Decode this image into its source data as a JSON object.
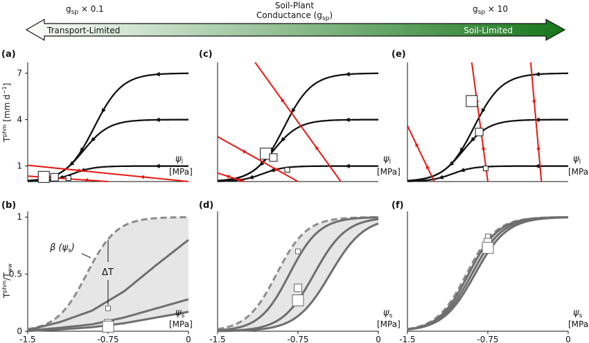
{
  "header": {
    "left_label": "g",
    "left_sub": "sp",
    "left_factor": " × 0.1",
    "center_line1": "Soil-Plant",
    "center_line2a": "Conductance (g",
    "center_line2b": "sp",
    "center_line2c": ")",
    "right_label": "g",
    "right_sub": "sp",
    "right_factor": " × 10",
    "arrow_left_text": "Transport-Limited",
    "arrow_right_text": "Soil-Limited",
    "colors": {
      "arrow_start": "#ffffff",
      "arrow_end": "#1a7a1a",
      "supply_line": "#e8170f",
      "demand_curve": "#111111",
      "response_curve": "#6e6e6e",
      "shading": "#e6e6e6"
    }
  },
  "axes_text": {
    "top_ylabel_main": "T",
    "top_ylabel_sup": "phm",
    "top_ylabel_units": "[mm d",
    "top_ylabel_units_sup": "−1",
    "top_ylabel_units_end": "]",
    "bottom_ylabel_main": "T",
    "bottom_ylabel_sup": "phm",
    "bottom_ylabel_div": "/T",
    "bottom_ylabel_sub": "ww",
    "psi_l_symbol": "ψ",
    "psi_l_sub": "l",
    "psi_s_symbol": "ψ",
    "psi_s_sub": "s",
    "unit": "[MPa]",
    "beta_label": "β (ψ",
    "beta_sub": "s",
    "beta_end": ")",
    "delta_label": "ΔT"
  },
  "chart_data": [
    {
      "panel": "(a)",
      "type": "line",
      "xlabel": "ψl [MPa]",
      "ylabel": "Tphm [mm d−1]",
      "yticks": [
        1,
        4,
        7
      ],
      "ylim": [
        0,
        7.7
      ],
      "xlim": [
        -1.5,
        0
      ],
      "demand_curves": [
        {
          "plateau": 7,
          "midpoint": -0.88,
          "width": 0.13
        },
        {
          "plateau": 4,
          "midpoint": -0.98,
          "width": 0.12
        },
        {
          "plateau": 1,
          "midpoint": -1.08,
          "width": 0.1
        }
      ],
      "supply_lines": [
        {
          "x_start": -1.5,
          "y_start": 1.05,
          "x_end": 0,
          "y_end": 0
        },
        {
          "x_start": -1.5,
          "y_start": 0.35,
          "x_end": -0.75,
          "y_end": 0
        }
      ],
      "operating_points": [
        {
          "x": -1.35,
          "y": 0.3,
          "size": "large"
        },
        {
          "x": -1.25,
          "y": 0.28,
          "size": "medium"
        },
        {
          "x": -1.12,
          "y": 0.22,
          "size": "small"
        }
      ]
    },
    {
      "panel": "(c)",
      "type": "line",
      "xlabel": "ψl [MPa]",
      "xlim": [
        -1.5,
        0
      ],
      "ylim": [
        0,
        7.7
      ],
      "supply_lines": [
        {
          "x_start": -1.5,
          "y_start": 2.9,
          "x_end": -0.75,
          "y_end": 0
        },
        {
          "x_start": -1.5,
          "y_start": 0.55,
          "x_end": -1.25,
          "y_end": 0
        },
        {
          "x_start": -1.15,
          "y_start": 7.7,
          "x_end": -0.35,
          "y_end": 0
        }
      ],
      "operating_points": [
        {
          "x": -1.05,
          "y": 1.8,
          "size": "large"
        },
        {
          "x": -0.98,
          "y": 1.55,
          "size": "medium"
        },
        {
          "x": -0.85,
          "y": 0.75,
          "size": "small"
        }
      ]
    },
    {
      "panel": "(e)",
      "type": "line",
      "xlabel": "ψl [MPa]",
      "xlim": [
        -1.5,
        0
      ],
      "ylim": [
        0,
        7.7
      ],
      "supply_lines": [
        {
          "x_start": -1.5,
          "y_start": 3.6,
          "x_end": -1.25,
          "y_end": 0
        },
        {
          "x_start": -0.9,
          "y_start": 7.7,
          "x_end": -0.75,
          "y_end": 0
        },
        {
          "x_start": -0.35,
          "y_start": 7.7,
          "x_end": -0.25,
          "y_end": 0
        }
      ],
      "operating_points": [
        {
          "x": -0.9,
          "y": 5.2,
          "size": "large"
        },
        {
          "x": -0.83,
          "y": 3.2,
          "size": "medium"
        },
        {
          "x": -0.77,
          "y": 0.85,
          "size": "small"
        }
      ]
    },
    {
      "panel": "(b)",
      "type": "line",
      "xlabel": "ψs [MPa]",
      "ylabel": "Tphm/Tww",
      "xticks": [
        -1.5,
        -0.75,
        0
      ],
      "xticklabels": [
        "-1.5",
        "-0.75",
        "0"
      ],
      "yticks": [
        0,
        0.5,
        1
      ],
      "yticklabels": [
        "0",
        "0.5",
        "1"
      ],
      "xlim": [
        -1.5,
        0
      ],
      "ylim": [
        0,
        1.05
      ],
      "beta_curve": {
        "midpoint": -0.95,
        "width": 0.14,
        "style": "dashed"
      },
      "curves": [
        {
          "x": [
            -1.5,
            -1.2,
            -0.9,
            -0.6,
            -0.3,
            0
          ],
          "y": [
            0.01,
            0.08,
            0.18,
            0.35,
            0.58,
            0.8
          ]
        },
        {
          "x": [
            -1.5,
            -1.2,
            -0.9,
            -0.6,
            -0.3,
            0
          ],
          "y": [
            0.005,
            0.03,
            0.06,
            0.12,
            0.2,
            0.28
          ]
        },
        {
          "x": [
            -1.5,
            -1.2,
            -0.9,
            -0.6,
            -0.3,
            0
          ],
          "y": [
            0.002,
            0.015,
            0.035,
            0.07,
            0.12,
            0.17
          ]
        }
      ],
      "markers": [
        {
          "x": -0.75,
          "y": 0.2,
          "size": "small"
        },
        {
          "x": -0.75,
          "y": 0.07,
          "size": "medium"
        },
        {
          "x": -0.75,
          "y": 0.04,
          "size": "large"
        }
      ]
    },
    {
      "panel": "(d)",
      "type": "line",
      "xlabel": "ψs [MPa]",
      "xticks": [
        -1.5,
        -0.75,
        0
      ],
      "xticklabels": [
        "-1.5",
        "-0.75",
        "0"
      ],
      "xlim": [
        -1.5,
        0
      ],
      "ylim": [
        0,
        1.05
      ],
      "beta_curve": {
        "midpoint": -0.95,
        "width": 0.14,
        "style": "dashed"
      },
      "curves": [
        {
          "midpoint": -0.83,
          "width": 0.14
        },
        {
          "midpoint": -0.6,
          "width": 0.15
        },
        {
          "midpoint": -0.45,
          "width": 0.16
        }
      ],
      "markers": [
        {
          "x": -0.75,
          "y": 0.7,
          "size": "small"
        },
        {
          "x": -0.75,
          "y": 0.38,
          "size": "medium"
        },
        {
          "x": -0.75,
          "y": 0.27,
          "size": "large"
        }
      ]
    },
    {
      "panel": "(f)",
      "type": "line",
      "xlabel": "ψs [MPa]",
      "xticks": [
        -1.5,
        -0.75,
        0
      ],
      "xticklabels": [
        "-1.5",
        "-0.75",
        "0"
      ],
      "xlim": [
        -1.5,
        0
      ],
      "ylim": [
        0,
        1.05
      ],
      "beta_curve": {
        "midpoint": -0.95,
        "width": 0.14,
        "style": "dashed"
      },
      "curves": [
        {
          "midpoint": -0.93,
          "width": 0.14
        },
        {
          "midpoint": -0.9,
          "width": 0.145
        },
        {
          "midpoint": -0.87,
          "width": 0.15
        }
      ],
      "markers": [
        {
          "x": -0.75,
          "y": 0.83,
          "size": "small"
        },
        {
          "x": -0.75,
          "y": 0.78,
          "size": "medium"
        },
        {
          "x": -0.75,
          "y": 0.73,
          "size": "large"
        }
      ]
    }
  ],
  "panel_labels": [
    "(a)",
    "(c)",
    "(e)",
    "(b)",
    "(d)",
    "(f)"
  ]
}
